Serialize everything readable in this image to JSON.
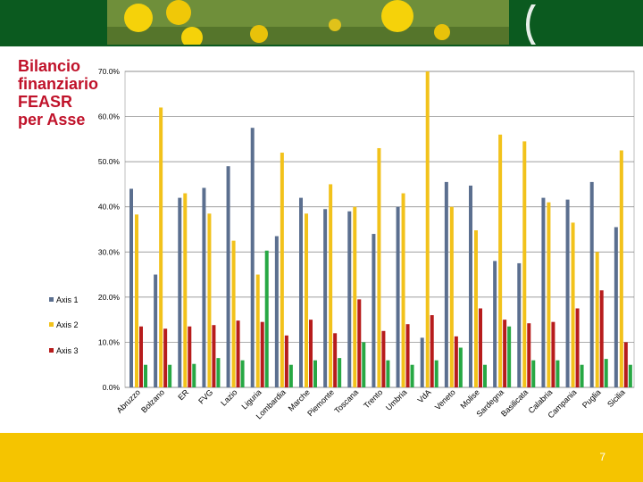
{
  "slide": {
    "title": "Bilancio\nfinanziario\nFEASR\nper Asse",
    "page_number": "7"
  },
  "colors": {
    "banner": "#0b5a1f",
    "footer": "#f5c400",
    "title": "#c0122a",
    "axis1": "#5b6f8f",
    "axis2": "#f2c21b",
    "axis3": "#b71c1c",
    "axis4": "#27a844"
  },
  "chart_data": {
    "type": "bar",
    "categories": [
      "Abruzzo",
      "Bolzano",
      "ER",
      "FVG",
      "Lazio",
      "Liguria",
      "Lombardia",
      "Marche",
      "Piemonte",
      "Toscana",
      "Trento",
      "Umbria",
      "VdA",
      "Veneto",
      "Molise",
      "Sardegna",
      "Basilicata",
      "Calabria",
      "Campania",
      "Puglia",
      "Sicilia"
    ],
    "series": [
      {
        "name": "Axis 1",
        "color": "#5b6f8f",
        "values": [
          44.0,
          25.0,
          42.0,
          44.2,
          49.0,
          57.5,
          33.5,
          42.0,
          39.5,
          39.0,
          34.0,
          40.0,
          11.0,
          45.5,
          44.7,
          28.0,
          27.5,
          42.0,
          41.6,
          45.5,
          35.5
        ]
      },
      {
        "name": "Axis 2",
        "color": "#f2c21b",
        "values": [
          38.3,
          62.0,
          43.0,
          38.5,
          32.5,
          25.0,
          52.0,
          38.5,
          45.0,
          40.0,
          53.0,
          43.0,
          70.0,
          40.0,
          34.8,
          56.0,
          54.5,
          41.0,
          36.5,
          30.0,
          52.5
        ]
      },
      {
        "name": "Axis 3",
        "color": "#b71c1c",
        "values": [
          13.5,
          13.0,
          13.5,
          13.8,
          14.8,
          14.5,
          11.5,
          15.0,
          12.0,
          19.5,
          12.5,
          14.0,
          16.0,
          11.3,
          17.5,
          15.0,
          14.2,
          14.5,
          17.5,
          21.5,
          10.0
        ]
      },
      {
        "color": "#27a844",
        "values": [
          5.0,
          5.0,
          5.2,
          6.5,
          6.0,
          30.3,
          5.0,
          6.0,
          6.5,
          10.0,
          6.0,
          5.0,
          6.0,
          8.8,
          5.0,
          13.5,
          6.0,
          6.0,
          5.0,
          6.3,
          5.0
        ]
      }
    ],
    "ylim": [
      0,
      70
    ],
    "yticks": [
      "0.0%",
      "10.0%",
      "20.0%",
      "30.0%",
      "40.0%",
      "50.0%",
      "60.0%",
      "70.0%"
    ],
    "legend": {
      "placement": "left",
      "entries": [
        "Axis 1",
        "Axis 2",
        "Axis 3"
      ]
    },
    "grid": true
  }
}
